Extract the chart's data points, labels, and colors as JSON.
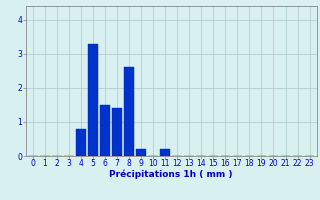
{
  "categories": [
    0,
    1,
    2,
    3,
    4,
    5,
    6,
    7,
    8,
    9,
    10,
    11,
    12,
    13,
    14,
    15,
    16,
    17,
    18,
    19,
    20,
    21,
    22,
    23
  ],
  "values": [
    0,
    0,
    0,
    0,
    0.8,
    3.3,
    1.5,
    1.4,
    2.6,
    0.2,
    0,
    0.2,
    0,
    0,
    0,
    0,
    0,
    0,
    0,
    0,
    0,
    0,
    0,
    0
  ],
  "bar_color": "#0033cc",
  "bar_edge_color": "#0022bb",
  "bg_color": "#d8f0f0",
  "grid_color": "#aac8c8",
  "xlabel": "Précipitations 1h ( mm )",
  "ylim": [
    0,
    4.4
  ],
  "xlim": [
    -0.6,
    23.6
  ],
  "yticks": [
    0,
    1,
    2,
    3,
    4
  ],
  "xticks": [
    0,
    1,
    2,
    3,
    4,
    5,
    6,
    7,
    8,
    9,
    10,
    11,
    12,
    13,
    14,
    15,
    16,
    17,
    18,
    19,
    20,
    21,
    22,
    23
  ],
  "xlabel_fontsize": 6.5,
  "tick_fontsize": 5.5,
  "label_color": "#0000cc",
  "axis_color": "#888888",
  "bar_width": 0.8
}
